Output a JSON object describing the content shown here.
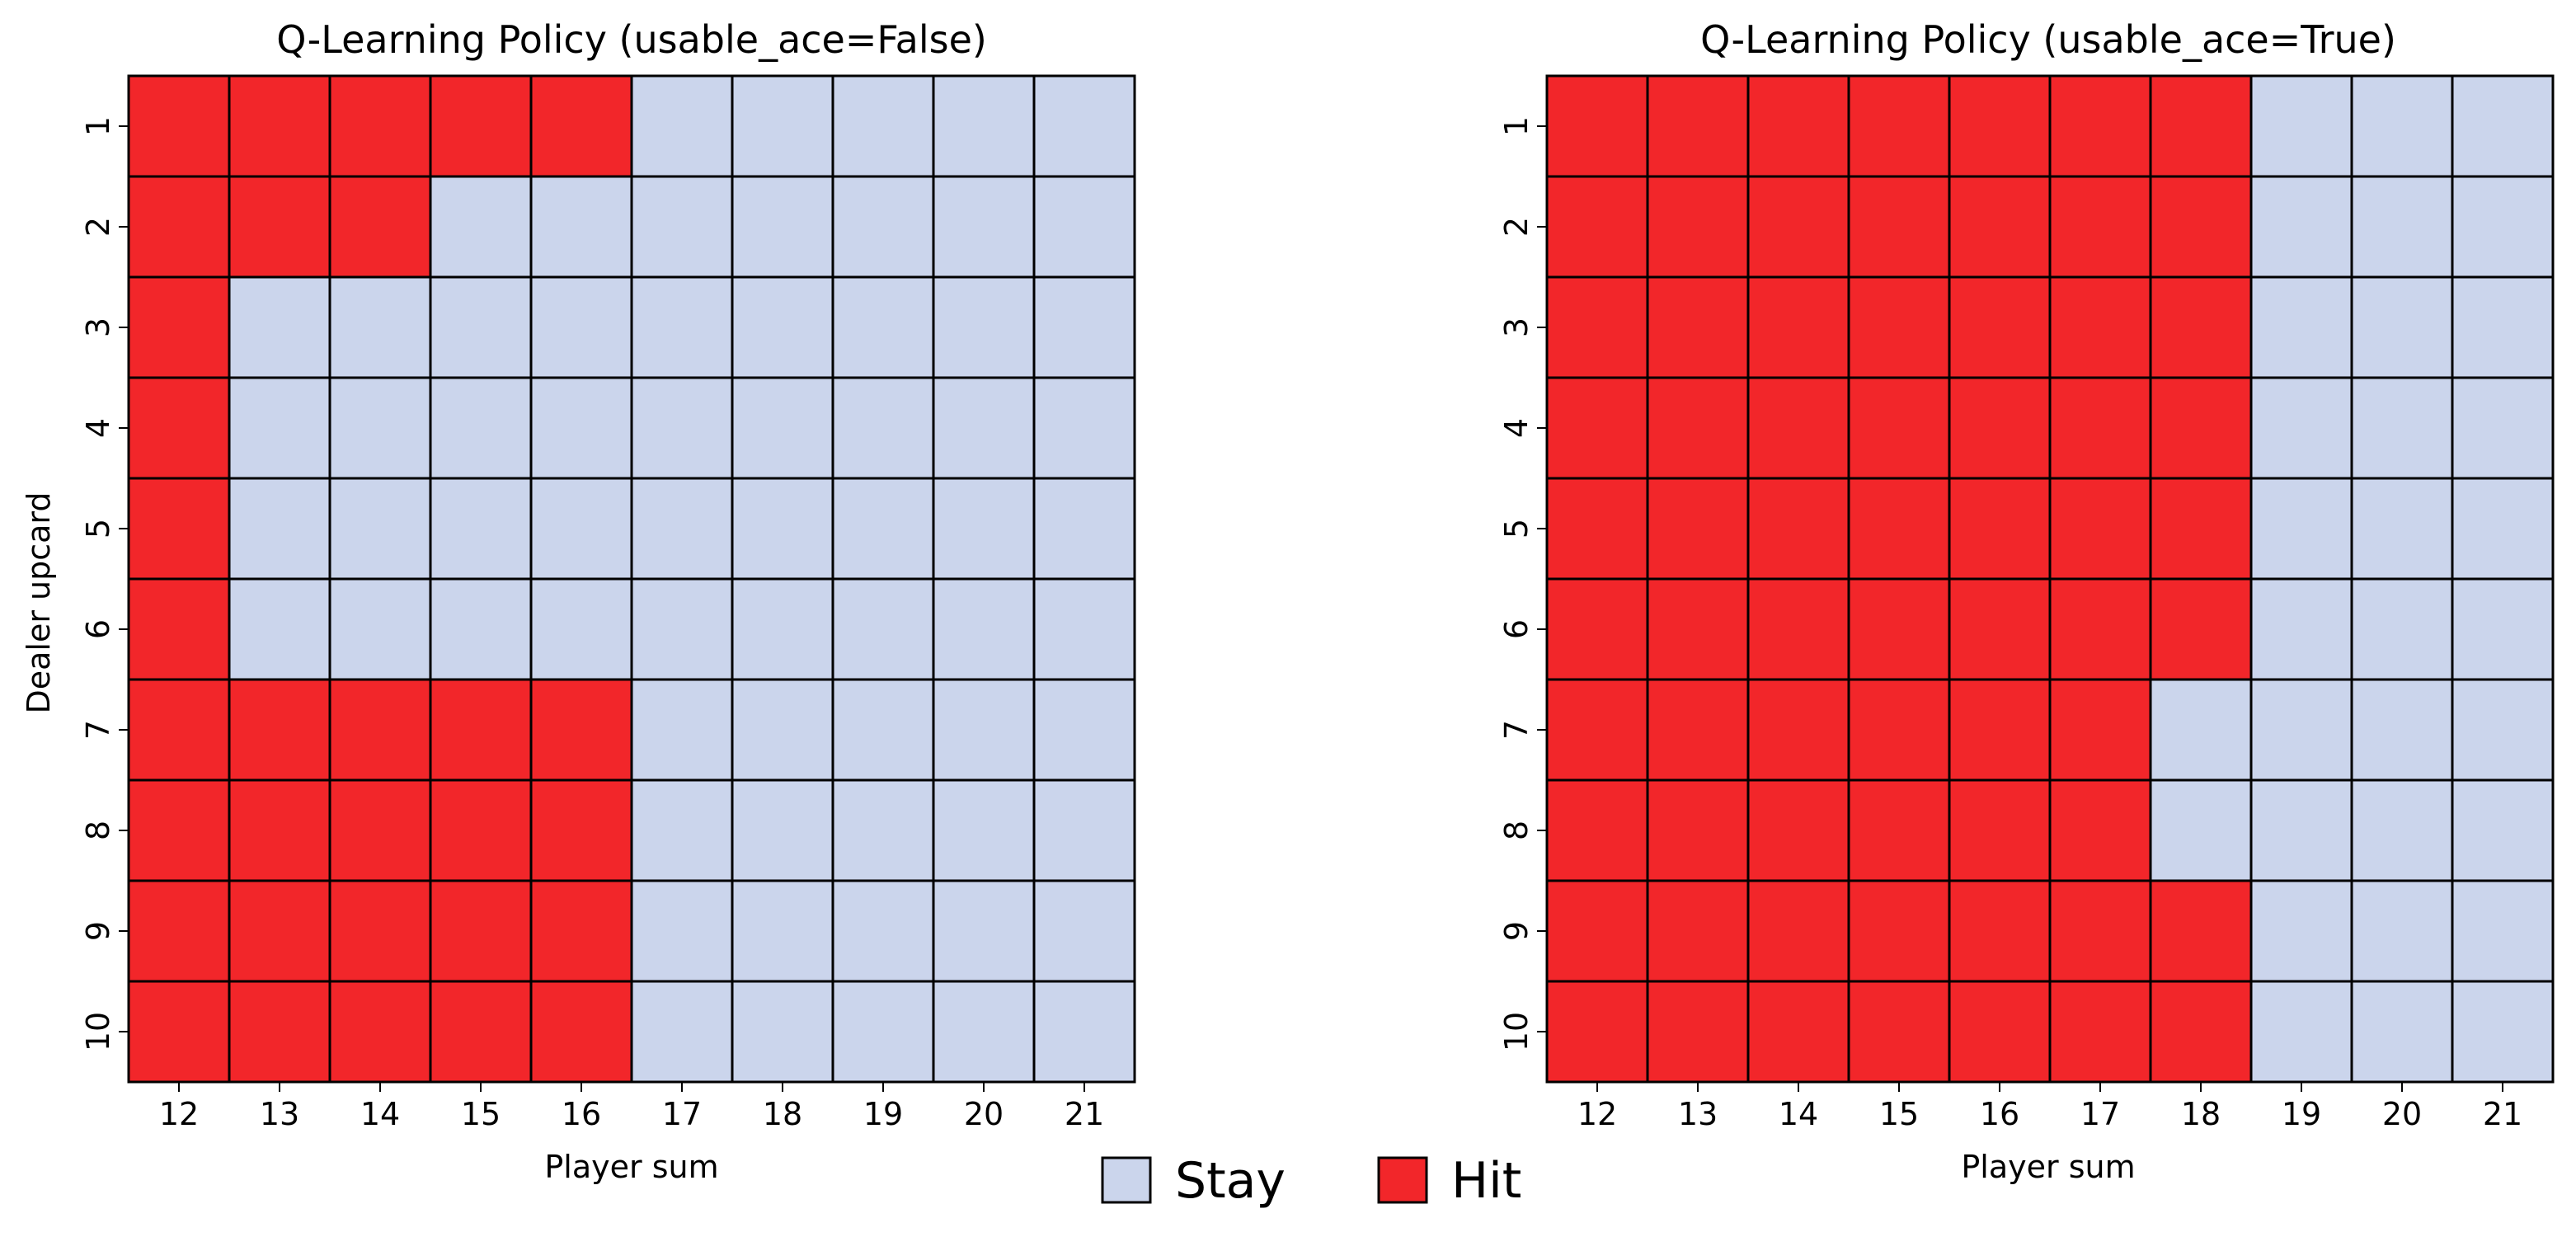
{
  "colors": {
    "stay": "#cbd5ec",
    "hit": "#f2262a",
    "grid": "#000000"
  },
  "legend": [
    {
      "key": "stay",
      "label": "Stay"
    },
    {
      "key": "hit",
      "label": "Hit"
    }
  ],
  "chart_data": [
    {
      "type": "heatmap",
      "title": "Q-Learning Policy (usable_ace=False)",
      "xlabel": "Player sum",
      "ylabel": "Dealer upcard",
      "x": [
        12,
        13,
        14,
        15,
        16,
        17,
        18,
        19,
        20,
        21
      ],
      "y": [
        1,
        2,
        3,
        4,
        5,
        6,
        7,
        8,
        9,
        10
      ],
      "value_labels": {
        "0": "Stay",
        "1": "Hit"
      },
      "values": [
        [
          1,
          1,
          1,
          1,
          1,
          0,
          0,
          0,
          0,
          0
        ],
        [
          1,
          1,
          1,
          0,
          0,
          0,
          0,
          0,
          0,
          0
        ],
        [
          1,
          0,
          0,
          0,
          0,
          0,
          0,
          0,
          0,
          0
        ],
        [
          1,
          0,
          0,
          0,
          0,
          0,
          0,
          0,
          0,
          0
        ],
        [
          1,
          0,
          0,
          0,
          0,
          0,
          0,
          0,
          0,
          0
        ],
        [
          1,
          0,
          0,
          0,
          0,
          0,
          0,
          0,
          0,
          0
        ],
        [
          1,
          1,
          1,
          1,
          1,
          0,
          0,
          0,
          0,
          0
        ],
        [
          1,
          1,
          1,
          1,
          1,
          0,
          0,
          0,
          0,
          0
        ],
        [
          1,
          1,
          1,
          1,
          1,
          0,
          0,
          0,
          0,
          0
        ],
        [
          1,
          1,
          1,
          1,
          1,
          0,
          0,
          0,
          0,
          0
        ]
      ]
    },
    {
      "type": "heatmap",
      "title": "Q-Learning Policy (usable_ace=True)",
      "xlabel": "Player sum",
      "ylabel": "",
      "x": [
        12,
        13,
        14,
        15,
        16,
        17,
        18,
        19,
        20,
        21
      ],
      "y": [
        1,
        2,
        3,
        4,
        5,
        6,
        7,
        8,
        9,
        10
      ],
      "value_labels": {
        "0": "Stay",
        "1": "Hit"
      },
      "values": [
        [
          1,
          1,
          1,
          1,
          1,
          1,
          1,
          0,
          0,
          0
        ],
        [
          1,
          1,
          1,
          1,
          1,
          1,
          1,
          0,
          0,
          0
        ],
        [
          1,
          1,
          1,
          1,
          1,
          1,
          1,
          0,
          0,
          0
        ],
        [
          1,
          1,
          1,
          1,
          1,
          1,
          1,
          0,
          0,
          0
        ],
        [
          1,
          1,
          1,
          1,
          1,
          1,
          1,
          0,
          0,
          0
        ],
        [
          1,
          1,
          1,
          1,
          1,
          1,
          1,
          0,
          0,
          0
        ],
        [
          1,
          1,
          1,
          1,
          1,
          1,
          0,
          0,
          0,
          0
        ],
        [
          1,
          1,
          1,
          1,
          1,
          1,
          0,
          0,
          0,
          0
        ],
        [
          1,
          1,
          1,
          1,
          1,
          1,
          1,
          0,
          0,
          0
        ],
        [
          1,
          1,
          1,
          1,
          1,
          1,
          1,
          0,
          0,
          0
        ]
      ]
    }
  ]
}
